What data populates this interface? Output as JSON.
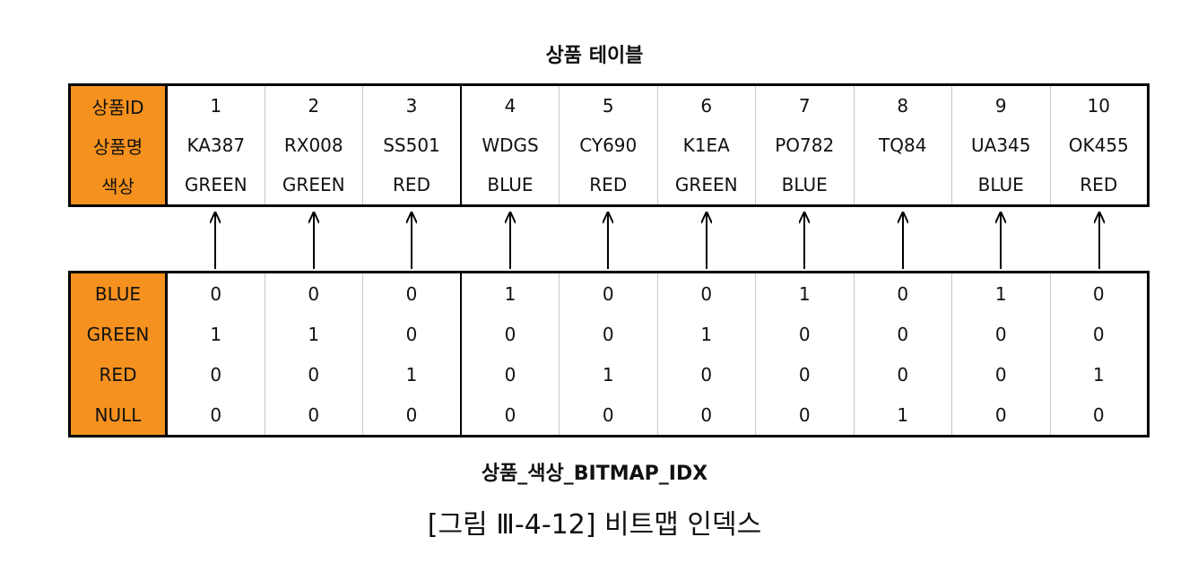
{
  "top_title": "상품 테이블",
  "bottom_title": "상품_색상_BITMAP_IDX",
  "caption": "[그림 Ⅲ-4-12] 비트맵 인덱스",
  "product_table": {
    "row_labels": [
      "상품ID",
      "상품명",
      "색상"
    ],
    "ids": [
      "1",
      "2",
      "3",
      "4",
      "5",
      "6",
      "7",
      "8",
      "9",
      "10"
    ],
    "names": [
      "KA387",
      "RX008",
      "SS501",
      "WDGS",
      "CY690",
      "K1EA",
      "PO782",
      "TQ84",
      "UA345",
      "OK455"
    ],
    "colors": [
      "GREEN",
      "GREEN",
      "RED",
      "BLUE",
      "RED",
      "GREEN",
      "BLUE",
      "",
      "BLUE",
      "RED"
    ]
  },
  "bitmap_index": {
    "rows": [
      {
        "label": "BLUE",
        "bits": [
          "0",
          "0",
          "0",
          "1",
          "0",
          "0",
          "1",
          "0",
          "1",
          "0"
        ]
      },
      {
        "label": "GREEN",
        "bits": [
          "1",
          "1",
          "0",
          "0",
          "0",
          "1",
          "0",
          "0",
          "0",
          "0"
        ]
      },
      {
        "label": "RED",
        "bits": [
          "0",
          "0",
          "1",
          "0",
          "1",
          "0",
          "0",
          "0",
          "0",
          "1"
        ]
      },
      {
        "label": "NULL",
        "bits": [
          "0",
          "0",
          "0",
          "0",
          "0",
          "0",
          "0",
          "1",
          "0",
          "0"
        ]
      }
    ]
  },
  "colors": {
    "header_fill": "#f5911e"
  }
}
